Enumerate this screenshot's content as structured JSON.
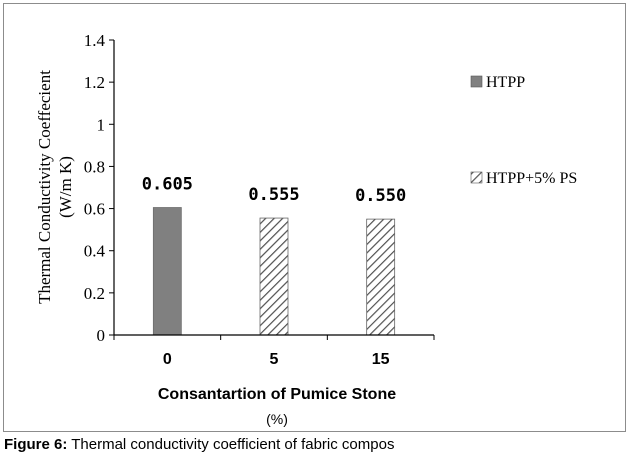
{
  "chart_data": {
    "type": "bar",
    "title": "",
    "xlabel": "Consantartion of Pumice Stone",
    "xlabel_unit": "(%)",
    "ylabel": "Thermal Conductivity Coeffecient",
    "ylabel_unit": "(W/m K)",
    "categories": [
      "0",
      "5",
      "15"
    ],
    "ylim": [
      0,
      1.4
    ],
    "yticks": [
      "0",
      "0.2",
      "0.4",
      "0.6",
      "0.8",
      "1",
      "1.2",
      "1.4"
    ],
    "grid": false,
    "legend_position": "right",
    "series": [
      {
        "name": "HTPP",
        "values": [
          0.605,
          null,
          null
        ],
        "fill": "#808080"
      },
      {
        "name": "HTPP+5% PS",
        "values": [
          null,
          0.555,
          0.55
        ],
        "fill": "hatch"
      }
    ],
    "data_labels": [
      "0.605",
      "0.555",
      "0.550"
    ]
  },
  "caption": {
    "label": "Figure 6:",
    "text": "Thermal conductivity coefficient of fabric compos"
  },
  "colors": {
    "solid_bar": "#808080",
    "hatch_line": "#505050",
    "axis": "#000000",
    "frame": "#8c8c8c"
  }
}
